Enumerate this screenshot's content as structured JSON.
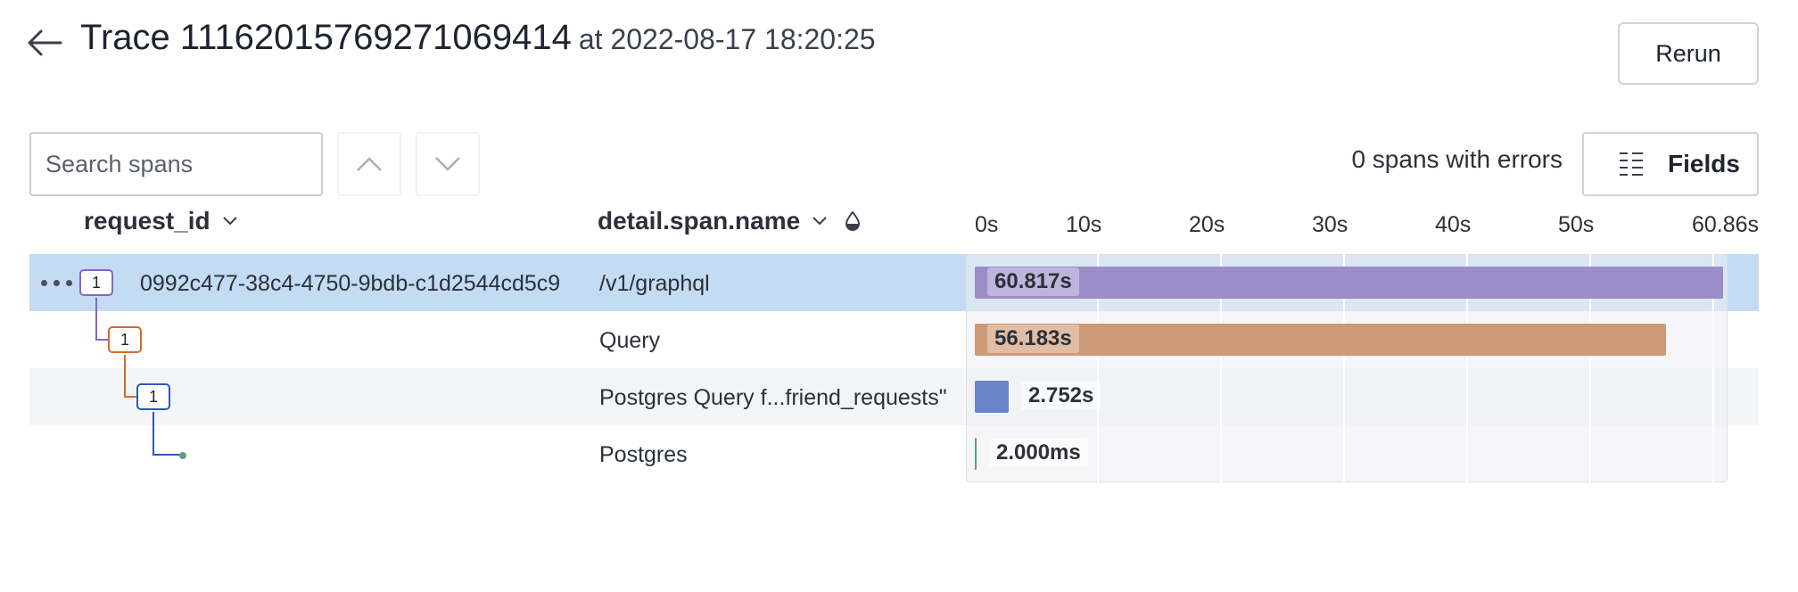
{
  "header": {
    "title": "Trace 1116201576927106941​4",
    "title_at": "at 2022-08-17 18:20:25",
    "rerun_label": "Rerun"
  },
  "toolbar": {
    "search_placeholder": "Search spans",
    "errors_text": "0 spans with errors",
    "fields_label": "Fields"
  },
  "columns": {
    "request_id": "request_id",
    "span_name": "detail.span.name"
  },
  "timeline": {
    "ticks": [
      "0s",
      "10s",
      "20s",
      "30s",
      "40s",
      "50s",
      "60.86s"
    ],
    "total_seconds": 60.86
  },
  "rows": [
    {
      "count": "1",
      "request_id": "0992c477-38c4-4750-9bdb-c1d2544cd5c9",
      "span_name": "/v1/graphql",
      "duration_label": "60.817s",
      "duration_seconds": 60.817,
      "color": "#9b8ec8",
      "badge_color": "#8a63c9"
    },
    {
      "count": "1",
      "request_id": "",
      "span_name": "Query",
      "duration_label": "56.183s",
      "duration_seconds": 56.183,
      "color": "#cf9a77",
      "badge_color": "#d16a2c"
    },
    {
      "count": "1",
      "request_id": "",
      "span_name": "Postgres Query f...friend_requests\"",
      "duration_label": "2.752s",
      "duration_seconds": 2.752,
      "color": "#6885c9",
      "badge_color": "#2c58b3"
    },
    {
      "count": "",
      "request_id": "",
      "span_name": "Postgres",
      "duration_label": "2.000ms",
      "duration_seconds": 0.002,
      "color": "#5aa07e",
      "badge_color": ""
    }
  ]
}
